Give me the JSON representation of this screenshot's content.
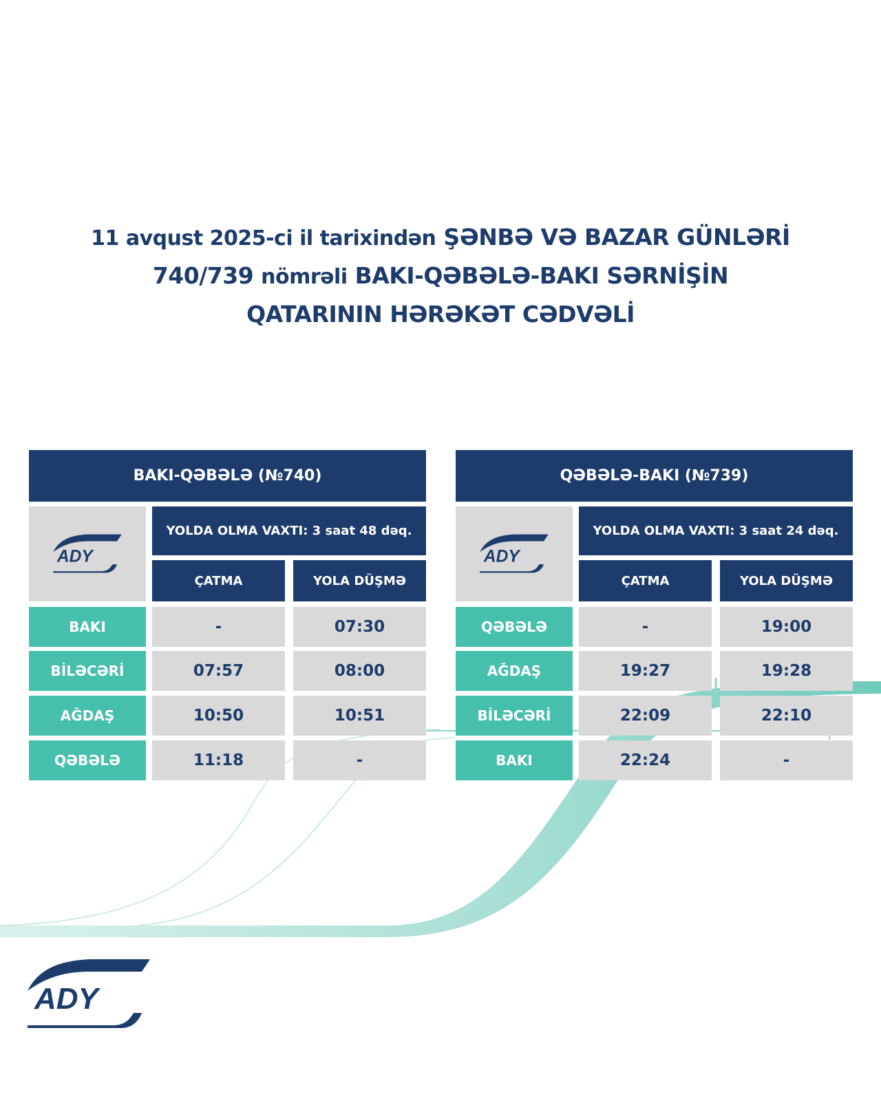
{
  "title": {
    "line1_prefix": "11 avqust 2025-ci il tarixindən",
    "line1_bold": "ŞƏNBƏ VƏ BAZAR GÜNLƏRİ",
    "line2_prefix": "740/739",
    "line2_mid": "nömrəli",
    "line2_bold": "BAKI-QƏBƏLƏ-BAKI SƏRNİŞİN",
    "line3": "QATARININ HƏRƏKƏT CƏDVƏLİ"
  },
  "colors": {
    "navy": "#1d3c6c",
    "teal": "#46bfac",
    "grey": "#d9d9d9"
  },
  "logo_text": "ADY",
  "tables": [
    {
      "header": "BAKI-QƏBƏLƏ (№740)",
      "travel_time": "YOLDA OLMA VAXTI: 3 saat 48 dəq.",
      "col_arrival": "ÇATMA",
      "col_departure": "YOLA DÜŞMƏ",
      "rows": [
        {
          "station": "BAKI",
          "arrival": "-",
          "departure": "07:30"
        },
        {
          "station": "BİLƏCƏRİ",
          "arrival": "07:57",
          "departure": "08:00"
        },
        {
          "station": "AĞDAŞ",
          "arrival": "10:50",
          "departure": "10:51"
        },
        {
          "station": "QƏBƏLƏ",
          "arrival": "11:18",
          "departure": "-"
        }
      ]
    },
    {
      "header": "QƏBƏLƏ-BAKI (№739)",
      "travel_time": "YOLDA OLMA VAXTI: 3 saat 24 dəq.",
      "col_arrival": "ÇATMA",
      "col_departure": "YOLA DÜŞMƏ",
      "rows": [
        {
          "station": "QƏBƏLƏ",
          "arrival": "-",
          "departure": "19:00"
        },
        {
          "station": "AĞDAŞ",
          "arrival": "19:27",
          "departure": "19:28"
        },
        {
          "station": "BİLƏCƏRİ",
          "arrival": "22:09",
          "departure": "22:10"
        },
        {
          "station": "BAKI",
          "arrival": "22:24",
          "departure": "-"
        }
      ]
    }
  ]
}
